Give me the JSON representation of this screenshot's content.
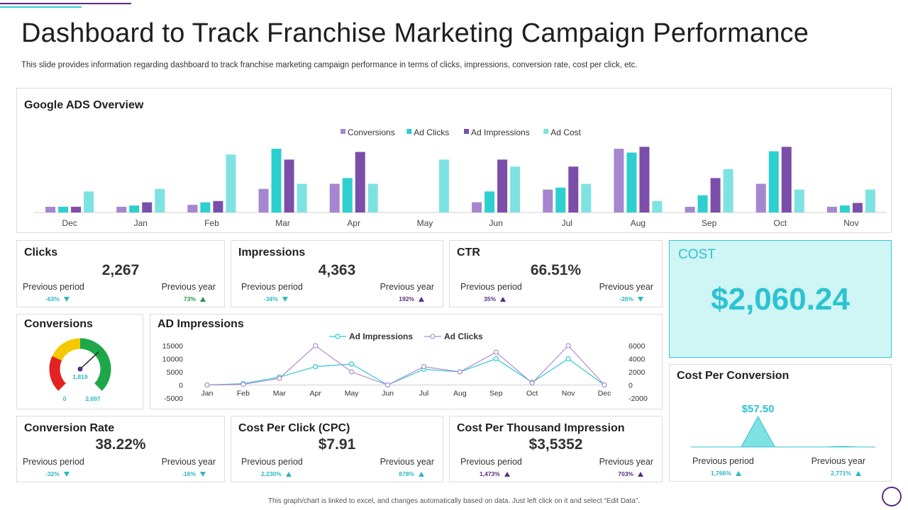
{
  "page": {
    "title": "Dashboard to Track Franchise Marketing Campaign Performance",
    "subtitle": "This slide provides information regarding dashboard to track franchise marketing campaign performance in terms of clicks, impressions, conversion rate, cost per click, etc.",
    "footer": "This graph/chart is linked to excel, and changes automatically based on data. Just left click on it and select “Edit Data”."
  },
  "colors": {
    "conversions": "#a487cf",
    "ad_clicks": "#2dcfcf",
    "ad_impressions": "#7b4eaa",
    "ad_cost": "#7fe2e2",
    "brand_purple": "#5b2b82",
    "cyan": "#2cc3d1"
  },
  "overview": {
    "title": "Google ADS Overview"
  },
  "metrics": {
    "clicks": {
      "title": "Clicks",
      "value": "2,267",
      "prev_period_label": "Previous period",
      "prev_period": "-63%",
      "prev_year_label": "Previous year",
      "prev_year": "73%"
    },
    "impressions": {
      "title": "Impressions",
      "value": "4,363",
      "prev_period_label": "Previous period",
      "prev_period": "-34%",
      "prev_year_label": "Previous year",
      "prev_year": "192%"
    },
    "ctr": {
      "title": "CTR",
      "value": "66.51%",
      "prev_period_label": "Previous period",
      "prev_period": "35%",
      "prev_year_label": "Previous year",
      "prev_year": "-26%"
    },
    "conversion_rate": {
      "title": "Conversion Rate",
      "value": "38.22%",
      "prev_period_label": "Previous period",
      "prev_period": "-32%",
      "prev_year_label": "Previous year",
      "prev_year": "-16%"
    },
    "cpc": {
      "title": "Cost Per Click (CPC)",
      "value": "$7.91",
      "prev_period_label": "Previous period",
      "prev_period": "2,230%",
      "prev_year_label": "Previous year",
      "prev_year": "878%"
    },
    "cpm": {
      "title": "Cost Per Thousand Impression",
      "value": "$3,5352",
      "prev_period_label": "Previous period",
      "prev_period": "1,473%",
      "prev_year_label": "Previous year",
      "prev_year": "703%"
    },
    "cost_per_conversion": {
      "title": "Cost Per Conversion",
      "value": "$57.50",
      "prev_period_label": "Previous period",
      "prev_period": "1,766%",
      "prev_year_label": "Previous year",
      "prev_year": "2,771%"
    }
  },
  "cost": {
    "label": "COST",
    "value": "$2,060.24"
  },
  "conversions_gauge": {
    "title": "Conversions",
    "value": 1819,
    "value_label": "1,819",
    "min_label": "0",
    "max_label": "2,697",
    "max": 2697
  },
  "ad_impressions_panel": {
    "title": "AD Impressions"
  },
  "chart_data": [
    {
      "type": "bar",
      "title": "Google ADS Overview",
      "categories": [
        "Dec",
        "Jan",
        "Feb",
        "Mar",
        "Apr",
        "May",
        "Jun",
        "Jul",
        "Aug",
        "Sep",
        "Oct",
        "Nov"
      ],
      "legend_position": "top-center",
      "ylim": [
        0,
        100
      ],
      "series": [
        {
          "name": "Conversions",
          "values": [
            9,
            9,
            12,
            37,
            45,
            0,
            16,
            36,
            100,
            9,
            45,
            9
          ]
        },
        {
          "name": "Ad Clicks",
          "values": [
            9,
            11,
            16,
            100,
            54,
            0,
            33,
            39,
            94,
            27,
            96,
            11
          ]
        },
        {
          "name": "Ad Impressions",
          "values": [
            9,
            16,
            18,
            83,
            95,
            0,
            83,
            72,
            103,
            54,
            103,
            15
          ]
        },
        {
          "name": "Ad Cost",
          "values": [
            33,
            37,
            91,
            45,
            45,
            83,
            72,
            45,
            18,
            68,
            36,
            36
          ]
        }
      ]
    },
    {
      "type": "line",
      "title": "AD Impressions",
      "x": [
        "Jan",
        "Feb",
        "Mar",
        "Apr",
        "May",
        "Jun",
        "Jul",
        "Aug",
        "Sep",
        "Oct",
        "Nov",
        "Dec"
      ],
      "legend_position": "top-center",
      "y_left_ticks": [
        "15000",
        "10000",
        "5000",
        "0",
        "-5000"
      ],
      "y_right_ticks": [
        "6000",
        "4000",
        "2000",
        "0",
        "-2000"
      ],
      "ylim_left": [
        -5000,
        15000
      ],
      "ylim_right": [
        -2000,
        6000
      ],
      "series": [
        {
          "name": "Ad Impressions",
          "axis": "left",
          "values": [
            0,
            500,
            3000,
            7000,
            8000,
            0,
            6000,
            5000,
            10000,
            1000,
            10000,
            0
          ]
        },
        {
          "name": "Ad Clicks",
          "axis": "right",
          "values": [
            0,
            100,
            1000,
            6000,
            2000,
            0,
            2800,
            2000,
            5000,
            300,
            6000,
            0
          ]
        }
      ]
    },
    {
      "type": "area",
      "title": "Cost Per Conversion",
      "peak_label": "$57.50",
      "values": [
        0,
        0,
        0,
        0,
        57.5,
        0,
        0,
        0,
        0,
        1,
        0,
        0
      ]
    },
    {
      "type": "gauge",
      "title": "Conversions",
      "value": 1819,
      "min": 0,
      "max": 2697
    }
  ]
}
